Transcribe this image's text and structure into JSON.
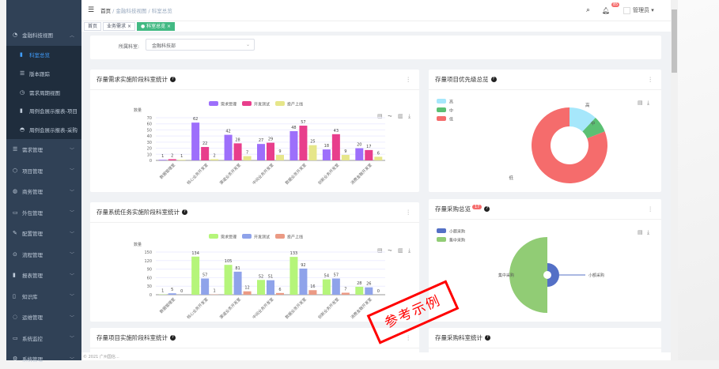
{
  "sidebar": {
    "groups": [
      {
        "label": "金融科技视图",
        "icon": "dashboard-icon",
        "expanded": true,
        "items": [
          {
            "label": "科室总览",
            "icon": "bar-chart-icon",
            "active": true
          },
          {
            "label": "版本跟踪",
            "icon": "list-icon"
          },
          {
            "label": "需求周期视图",
            "icon": "clock-icon"
          },
          {
            "label": "周例会展示报表-项目",
            "icon": "bar-chart-icon"
          },
          {
            "label": "周例会展示报表-采购",
            "icon": "gauge-icon"
          }
        ]
      },
      {
        "label": "需求管理",
        "icon": "list-icon"
      },
      {
        "label": "项目管理",
        "icon": "cube-icon"
      },
      {
        "label": "商务管理",
        "icon": "globe-icon"
      },
      {
        "label": "外包管理",
        "icon": "bus-icon"
      },
      {
        "label": "配置管理",
        "icon": "edit-icon"
      },
      {
        "label": "流程管理",
        "icon": "flow-icon"
      },
      {
        "label": "报表管理",
        "icon": "bar-chart-icon"
      },
      {
        "label": "知识库",
        "icon": "book-icon"
      },
      {
        "label": "运维管理",
        "icon": "chat-icon"
      },
      {
        "label": "系统监控",
        "icon": "monitor-icon"
      },
      {
        "label": "系统管理",
        "icon": "gear-icon"
      }
    ]
  },
  "header": {
    "breadcrumb": [
      "首页",
      "金融科技视图",
      "科室总览"
    ],
    "notifications": "85",
    "user": "管理员"
  },
  "tags": [
    {
      "label": "首页"
    },
    {
      "label": "业务需求"
    },
    {
      "label": "科室总览",
      "active": true
    }
  ],
  "filter": {
    "label": "所属科室:",
    "value": "金融科技部"
  },
  "cards": {
    "c1": "存量需求实施阶段科室统计",
    "c2": "存量项目优先级总览",
    "c3": "存量系统任务实施阶段科室统计",
    "c4": "存量采购总览",
    "c4_badge": "17",
    "c5": "存量项目实施阶段科室统计",
    "c6": "存量采购科室统计"
  },
  "watermark": "参考示例",
  "footer": "© 2021 广州国信...",
  "chart_data": [
    {
      "type": "bar",
      "ylabel": "数量",
      "ylim": [
        0,
        70
      ],
      "yticks": [
        0,
        10,
        20,
        30,
        40,
        50,
        60,
        70
      ],
      "categories": [
        "数据管理室",
        "核心业务开发室",
        "渠道业务开发室",
        "中间业务开发室",
        "数据业务开发室",
        "创新业务开发室",
        "消费金融开发室"
      ],
      "series": [
        {
          "name": "需求受理",
          "color": "#9d6ffb",
          "values": [
            1,
            62,
            42,
            27,
            48,
            18,
            20
          ]
        },
        {
          "name": "开发测试",
          "color": "#e83e8c",
          "values": [
            2,
            22,
            28,
            29,
            57,
            43,
            17
          ]
        },
        {
          "name": "投产上线",
          "color": "#e6e68a",
          "values": [
            1,
            2,
            7,
            9,
            25,
            9,
            6
          ]
        }
      ]
    },
    {
      "type": "pie",
      "series": [
        {
          "name": "高",
          "color": "#a6e7fb",
          "value": 12
        },
        {
          "name": "中",
          "color": "#5bc073",
          "value": 7
        },
        {
          "name": "低",
          "color": "#f56c6c",
          "value": 81
        }
      ]
    },
    {
      "type": "bar",
      "ylabel": "数量",
      "ylim": [
        0,
        150
      ],
      "yticks": [
        0,
        30,
        60,
        90,
        120,
        150
      ],
      "categories": [
        "数据管理室",
        "核心业务开发室",
        "渠道业务开发室",
        "中间业务开发室",
        "数据业务开发室",
        "创新业务开发室",
        "消费金融开发室"
      ],
      "series": [
        {
          "name": "需求受理",
          "color": "#b5f57a",
          "values": [
            1,
            134,
            105,
            52,
            133,
            54,
            28
          ]
        },
        {
          "name": "开发测试",
          "color": "#8fa3ea",
          "values": [
            5,
            57,
            81,
            51,
            92,
            57,
            26
          ]
        },
        {
          "name": "投产上线",
          "color": "#eb9a84",
          "values": [
            0,
            1,
            12,
            6,
            16,
            7,
            0
          ]
        }
      ]
    },
    {
      "type": "pie",
      "rose": true,
      "series": [
        {
          "name": "小额采购",
          "color": "#5470c6",
          "value": 1
        },
        {
          "name": "集中采购",
          "color": "#91cc75",
          "value": 16
        }
      ]
    }
  ]
}
